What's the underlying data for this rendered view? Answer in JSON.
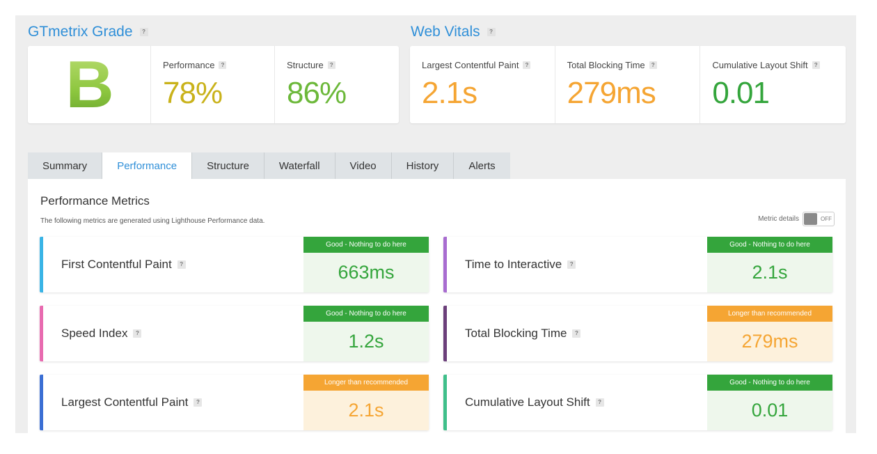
{
  "colors": {
    "link_blue": "#2f8fd8",
    "good_green": "#34a53c",
    "good_bg": "#eef7ec",
    "warn_orange": "#f5a533",
    "warn_bg": "#fdf1dc",
    "yellow_perf": "#c9b21a",
    "green_struct": "#6cb83a"
  },
  "grade": {
    "title": "GTmetrix Grade",
    "help": "?",
    "letter": "B",
    "performance_label": "Performance",
    "performance_value": "78%",
    "structure_label": "Structure",
    "structure_value": "86%"
  },
  "vitals": {
    "title": "Web Vitals",
    "help": "?",
    "items": [
      {
        "label": "Largest Contentful Paint",
        "value": "2.1s",
        "color": "#f5a533"
      },
      {
        "label": "Total Blocking Time",
        "value": "279ms",
        "color": "#f5a533"
      },
      {
        "label": "Cumulative Layout Shift",
        "value": "0.01",
        "color": "#34a53c"
      }
    ]
  },
  "tabs": [
    "Summary",
    "Performance",
    "Structure",
    "Waterfall",
    "Video",
    "History",
    "Alerts"
  ],
  "content": {
    "title": "Performance Metrics",
    "subtitle": "The following metrics are generated using Lighthouse Performance data.",
    "metric_details_label": "Metric details",
    "toggle_text": "OFF"
  },
  "metrics": [
    {
      "name": "First Contentful Paint",
      "badge": "Good - Nothing to do here",
      "value": "663ms",
      "bar": "#3ab4e6",
      "status": "good"
    },
    {
      "name": "Time to Interactive",
      "badge": "Good - Nothing to do here",
      "value": "2.1s",
      "bar": "#a86cd0",
      "status": "good"
    },
    {
      "name": "Speed Index",
      "badge": "Good - Nothing to do here",
      "value": "1.2s",
      "bar": "#e86bb0",
      "status": "good"
    },
    {
      "name": "Total Blocking Time",
      "badge": "Longer than recommended",
      "value": "279ms",
      "bar": "#6b3f7a",
      "status": "warn"
    },
    {
      "name": "Largest Contentful Paint",
      "badge": "Longer than recommended",
      "value": "2.1s",
      "bar": "#3b6fd4",
      "status": "warn"
    },
    {
      "name": "Cumulative Layout Shift",
      "badge": "Good - Nothing to do here",
      "value": "0.01",
      "bar": "#3fbf8a",
      "status": "good"
    }
  ]
}
